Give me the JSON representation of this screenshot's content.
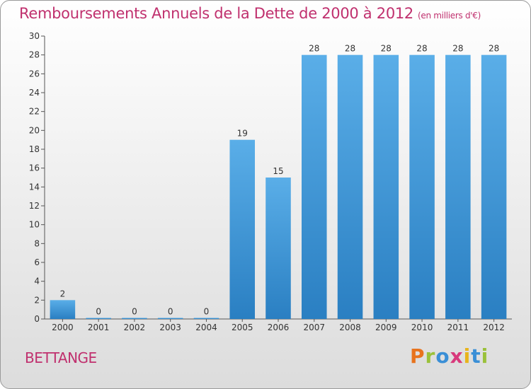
{
  "title": "Remboursements Annuels de la Dette de 2000 à 2012",
  "subtitle": "(en milliers d'€)",
  "commune": "BETTANGE",
  "logo": {
    "letters": [
      "P",
      "r",
      "o",
      "x",
      "i",
      "t",
      "i"
    ],
    "colors": [
      "#e8731d",
      "#9ac13a",
      "#3a8fd6",
      "#d83a7c",
      "#e8b41d",
      "#3a8fd6",
      "#9ac13a"
    ]
  },
  "colors": {
    "bar": "#5aaee8",
    "bar_dark": "#2a7fc2",
    "accent": "#c0306e"
  },
  "chart_data": {
    "type": "bar",
    "title": "Remboursements Annuels de la Dette de 2000 à 2012",
    "subtitle": "(en milliers d'€)",
    "categories": [
      "2000",
      "2001",
      "2002",
      "2003",
      "2004",
      "2005",
      "2006",
      "2007",
      "2008",
      "2009",
      "2010",
      "2011",
      "2012"
    ],
    "values": [
      2,
      0,
      0,
      0,
      0,
      19,
      15,
      28,
      28,
      28,
      28,
      28,
      28
    ],
    "labels": [
      "2",
      "0",
      "0",
      "0",
      "0",
      "19",
      "15",
      "28",
      "28",
      "28",
      "28",
      "28",
      "28"
    ],
    "ylim": [
      0,
      30
    ],
    "yticks": [
      0,
      2,
      4,
      6,
      8,
      10,
      12,
      14,
      16,
      18,
      20,
      22,
      24,
      26,
      28,
      30
    ],
    "grid": false,
    "xlabel": "",
    "ylabel": ""
  }
}
